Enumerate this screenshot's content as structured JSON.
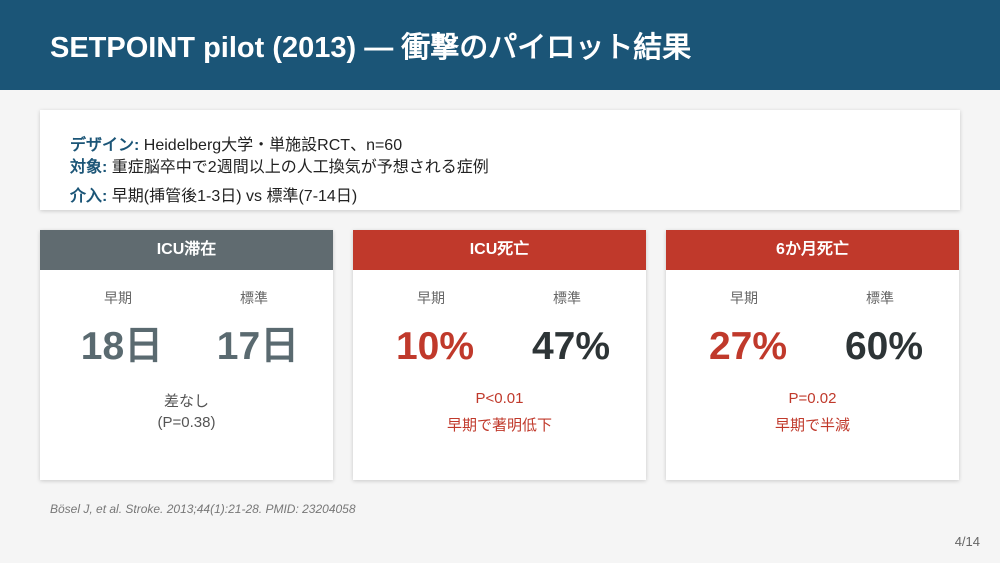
{
  "title": "SETPOINT pilot (2013) — 衝撃のパイロット結果",
  "info": {
    "design_label": "デザイン:",
    "design_text": "Heidelberg大学・単施設RCT、n=60",
    "subject_label": "対象:",
    "subject_text": "重症脳卒中で2週間以上の人工換気が予想される症例",
    "intervention_label": "介入:",
    "intervention_text": "早期(挿管後1-3日) vs 標準(7-14日)"
  },
  "cards": [
    {
      "header": "ICU滞在",
      "header_color": "#606b70",
      "early_label": "早期",
      "standard_label": "標準",
      "early_value": "18日",
      "standard_value": "17日",
      "early_color": "#5a6a70",
      "standard_color": "#5a6a70",
      "note1": "差なし",
      "note2": "(P=0.38)",
      "note_color": "#555555"
    },
    {
      "header": "ICU死亡",
      "header_color": "#c0392b",
      "early_label": "早期",
      "standard_label": "標準",
      "early_value": "10%",
      "standard_value": "47%",
      "early_color": "#c0392b",
      "standard_color": "#2d3436",
      "note1": "P<0.01",
      "note2": "早期で著明低下",
      "note_color": "#c0392b"
    },
    {
      "header": "6か月死亡",
      "header_color": "#c0392b",
      "early_label": "早期",
      "standard_label": "標準",
      "early_value": "27%",
      "standard_value": "60%",
      "early_color": "#c0392b",
      "standard_color": "#2d3436",
      "note1": "P=0.02",
      "note2": "早期で半減",
      "note_color": "#c0392b"
    }
  ],
  "citation": "Bösel J, et al. Stroke. 2013;44(1):21-28. PMID: 23204058",
  "page": "4/14"
}
